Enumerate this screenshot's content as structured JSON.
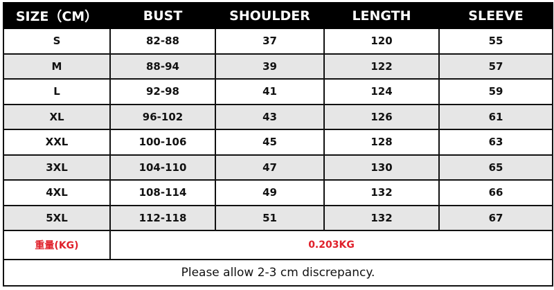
{
  "headers": [
    "SIZE（CM）",
    "BUST",
    "SHOULDER",
    "LENGTH",
    "SLEEVE"
  ],
  "rows": [
    [
      "S",
      "82-88",
      "37",
      "120",
      "55"
    ],
    [
      "M",
      "88-94",
      "39",
      "122",
      "57"
    ],
    [
      "L",
      "92-98",
      "41",
      "124",
      "59"
    ],
    [
      "XL",
      "96-102",
      "43",
      "126",
      "61"
    ],
    [
      "XXL",
      "100-106",
      "45",
      "128",
      "63"
    ],
    [
      "3XL",
      "104-110",
      "47",
      "130",
      "65"
    ],
    [
      "4XL",
      "108-114",
      "49",
      "132",
      "66"
    ],
    [
      "5XL",
      "112-118",
      "51",
      "132",
      "67"
    ]
  ],
  "weight": {
    "label": "重量(KG)",
    "value": "0.203KG"
  },
  "note": "Please allow 2-3 cm discrepancy.",
  "colors": {
    "header_bg": "#000000",
    "alt_row_bg": "#e6e6e6",
    "weight_text": "#e0202a"
  }
}
